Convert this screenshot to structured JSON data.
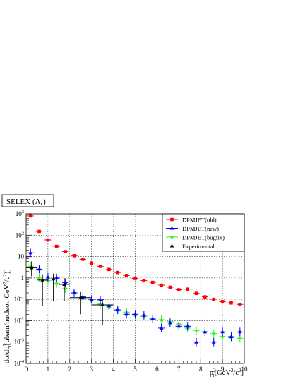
{
  "title_box": {
    "text": "SELEX (Λ",
    "sub": "c",
    "tail": ")"
  },
  "axes": {
    "xlabel_main": "p",
    "xlabel_sub": "t",
    "xlabel_sup": "2",
    "xlabel_unit": "[GeV",
    "xlabel_unit_sup": "2",
    "xlabel_unit_tail": "/c",
    "xlabel_unit_sup2": "2",
    "xlabel_close": "]",
    "ylabel_text": "dσ/dp",
    "ylabel_rest": "[μbarn/nucleon GeV",
    "ylabel_tail": "/c",
    "ylabel_close": ")]"
  },
  "chart_data": {
    "type": "scatter",
    "title": "SELEX (Λc)",
    "xlabel": "pt2 [GeV2/c2]",
    "ylabel": "dσ/dpt2 [μbarn/nucleon GeV2/c2]",
    "xlim": [
      0,
      10
    ],
    "ylim": [
      0.0001,
      1000
    ],
    "yscale": "log",
    "grid": true,
    "legend_position": "top-right",
    "x_ticks": [
      "0",
      "1",
      "2",
      "3",
      "4",
      "5",
      "6",
      "7",
      "8",
      "9",
      "10"
    ],
    "y_ticks": [
      "10-4",
      "10-3",
      "10-2",
      "10-1",
      "1",
      "10",
      "102",
      "103"
    ],
    "series": [
      {
        "name": "DPMJET(old)",
        "color": "#ff0000",
        "marker": "square",
        "xerr": 0.15,
        "x": [
          0.2,
          0.6,
          1.0,
          1.4,
          1.8,
          2.2,
          2.6,
          3.0,
          3.4,
          3.8,
          4.2,
          4.6,
          5.0,
          5.4,
          5.8,
          6.2,
          6.6,
          7.0,
          7.4,
          7.8,
          8.2,
          8.6,
          9.0,
          9.4,
          9.8
        ],
        "y": [
          800,
          150,
          60,
          30,
          17,
          11,
          7.5,
          5.0,
          3.5,
          2.5,
          1.8,
          1.3,
          0.95,
          0.75,
          0.62,
          0.46,
          0.37,
          0.28,
          0.3,
          0.19,
          0.13,
          0.1,
          0.078,
          0.068,
          0.058
        ]
      },
      {
        "name": "DPMJET(new)",
        "color": "#0000ff",
        "marker": "triangle",
        "xerr": 0.15,
        "x": [
          0.2,
          0.6,
          1.0,
          1.4,
          1.8,
          2.2,
          2.6,
          3.0,
          3.4,
          3.8,
          4.2,
          4.6,
          5.0,
          5.4,
          5.8,
          6.2,
          6.6,
          7.0,
          7.4,
          7.8,
          8.2,
          8.6,
          9.0,
          9.4,
          9.8
        ],
        "y": [
          15,
          2.6,
          1.1,
          1.0,
          0.6,
          0.2,
          0.13,
          0.1,
          0.095,
          0.05,
          0.032,
          0.02,
          0.02,
          0.018,
          0.012,
          0.0045,
          0.008,
          0.0055,
          0.0055,
          0.001,
          0.003,
          0.001,
          0.003,
          0.0018,
          0.003
        ]
      },
      {
        "name": "DPMJET(bugfix)",
        "color": "#33ee33",
        "marker": "star",
        "xerr": 0.15,
        "x": [
          0.2,
          0.6,
          1.0,
          1.4,
          1.8,
          2.2,
          2.6,
          3.0,
          3.4,
          3.8,
          4.2,
          4.6,
          5.0,
          5.4,
          5.8,
          6.2,
          6.6,
          7.0,
          7.4,
          7.8,
          8.2,
          8.6,
          9.0,
          9.4,
          9.8
        ],
        "y": [
          3.5,
          1.0,
          0.75,
          0.55,
          0.32,
          0.2,
          0.11,
          0.085,
          0.06,
          0.04,
          0.032,
          0.025,
          0.018,
          0.016,
          0.012,
          0.011,
          0.009,
          0.007,
          0.0045,
          0.0035,
          0.003,
          0.0025,
          0.0018,
          0.0016,
          0.0015
        ]
      },
      {
        "name": "Experimental",
        "color": "#000000",
        "marker": "triangle",
        "x": [
          0.25,
          0.75,
          1.25,
          1.75,
          2.5,
          3.5
        ],
        "xerr": [
          0.25,
          0.25,
          0.25,
          0.25,
          0.5,
          0.5
        ],
        "y": [
          3.0,
          0.8,
          0.9,
          0.5,
          0.12,
          0.055
        ],
        "ylow": [
          1.2,
          0.05,
          0.08,
          0.08,
          0.02,
          0.006
        ],
        "yhigh": [
          6.0,
          1.5,
          1.6,
          1.0,
          0.22,
          0.09
        ]
      }
    ]
  }
}
